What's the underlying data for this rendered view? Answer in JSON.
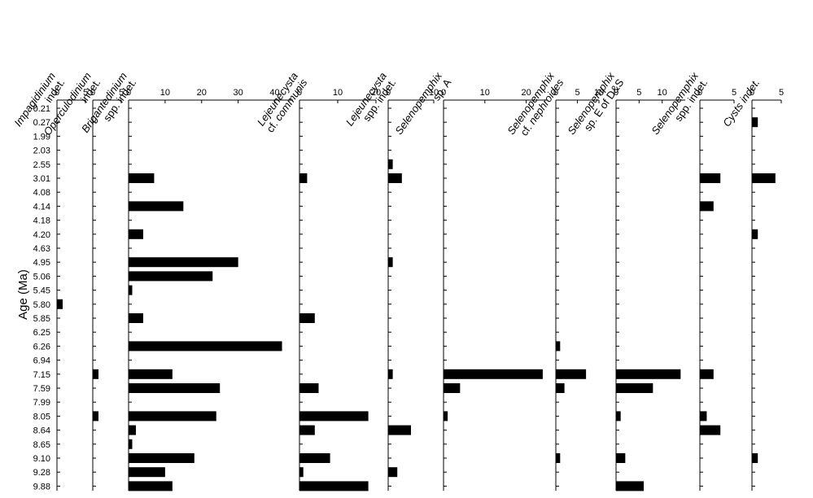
{
  "chart_data": {
    "type": "bar",
    "orientation": "horizontal",
    "ylabel": "Age (Ma)",
    "categories": [
      "0.21",
      "0.27",
      "1.99",
      "2.03",
      "2.55",
      "3.01",
      "4.08",
      "4.14",
      "4.18",
      "4.20",
      "4.63",
      "4.95",
      "5.06",
      "5.45",
      "5.80",
      "5.85",
      "6.25",
      "6.26",
      "6.94",
      "7.15",
      "7.59",
      "7.99",
      "8.05",
      "8.64",
      "8.65",
      "9.10",
      "9.28",
      "9.88"
    ],
    "panels": [
      {
        "id": "impagidinium",
        "title_lines": [
          [
            "Impagidinium",
            ""
          ],
          [
            "indet.",
            ""
          ]
        ],
        "xlim": [
          0,
          5
        ],
        "ticks": [
          "0",
          "5"
        ],
        "values": [
          0,
          0,
          0,
          0,
          0,
          0,
          0,
          0,
          0,
          0,
          0,
          0,
          0,
          0,
          1,
          0,
          0,
          0,
          0,
          0,
          0,
          0,
          0,
          0,
          0,
          0,
          0,
          0
        ]
      },
      {
        "id": "operculodinium",
        "title_lines": [
          [
            "Operculodinium",
            ""
          ],
          [
            "indet.",
            ""
          ]
        ],
        "xlim": [
          0,
          5
        ],
        "ticks": [
          "0",
          "5"
        ],
        "values": [
          0,
          0,
          0,
          0,
          0,
          0,
          0,
          0,
          0,
          0,
          0,
          0,
          0,
          0,
          0,
          0,
          0,
          0,
          0,
          1,
          0,
          0,
          1,
          0,
          0,
          0,
          0,
          0
        ]
      },
      {
        "id": "brigantedinium",
        "title_lines": [
          [
            "Brigantedinium",
            ""
          ],
          [
            "spp. indet.",
            ""
          ]
        ],
        "xlim": [
          0,
          45
        ],
        "ticks": [
          "0",
          "10",
          "20",
          "30",
          "40"
        ],
        "values": [
          0,
          0,
          0,
          0,
          0,
          7,
          0,
          15,
          0,
          4,
          0,
          30,
          23,
          1,
          0,
          4,
          0,
          42,
          0,
          12,
          25,
          0,
          24,
          2,
          1,
          18,
          10,
          12
        ]
      },
      {
        "id": "lejeunecysta_communis",
        "title_lines": [
          [
            "Lejeunecysta",
            ""
          ],
          [
            "cf. ",
            "communis"
          ]
        ],
        "xlim": [
          0,
          20
        ],
        "ticks": [
          "0",
          "10",
          "20"
        ],
        "values": [
          0,
          0,
          0,
          0,
          0,
          2,
          0,
          0,
          0,
          0,
          0,
          0,
          0,
          0,
          0,
          4,
          0,
          0,
          0,
          0,
          5,
          0,
          18,
          4,
          0,
          8,
          1,
          18
        ]
      },
      {
        "id": "lejeunecysta_spp",
        "title_lines": [
          [
            "Lejeunecysta",
            ""
          ],
          [
            "spp. indet.",
            ""
          ]
        ],
        "xlim": [
          0,
          10
        ],
        "ticks": [
          "0",
          "10"
        ],
        "values": [
          0,
          0,
          0,
          0,
          1,
          3,
          0,
          0,
          0,
          0,
          0,
          1,
          0,
          0,
          0,
          0,
          0,
          0,
          0,
          1,
          0,
          0,
          0,
          5,
          0,
          0,
          2,
          0
        ]
      },
      {
        "id": "selenopemphix_a",
        "title_lines": [
          [
            "Selenopemphix",
            ""
          ],
          [
            "sp. A",
            ""
          ]
        ],
        "xlim": [
          0,
          25
        ],
        "ticks": [
          "0",
          "10",
          "20"
        ],
        "values": [
          0,
          0,
          0,
          0,
          0,
          0,
          0,
          0,
          0,
          0,
          0,
          0,
          0,
          0,
          0,
          0,
          0,
          0,
          0,
          24,
          4,
          0,
          1,
          0,
          0,
          0,
          0,
          0
        ]
      },
      {
        "id": "selenopemphix_nephroides",
        "title_lines": [
          [
            "Selenopemphix",
            ""
          ],
          [
            "cf. ",
            "nephroides"
          ]
        ],
        "xlim": [
          0,
          10
        ],
        "ticks": [
          "0",
          "5",
          "10"
        ],
        "values": [
          0,
          0,
          0,
          0,
          0,
          0,
          0,
          0,
          0,
          0,
          0,
          0,
          0,
          0,
          0,
          0,
          0,
          1,
          0,
          7,
          2,
          0,
          0,
          0,
          0,
          1,
          0,
          0
        ]
      },
      {
        "id": "selenopemphix_e",
        "title_lines": [
          [
            "Selenopemphix",
            ""
          ],
          [
            "sp. E of D&S",
            ""
          ]
        ],
        "xlim": [
          0,
          15
        ],
        "ticks": [
          "0",
          "5",
          "10"
        ],
        "values": [
          0,
          0,
          0,
          0,
          0,
          0,
          0,
          0,
          0,
          0,
          0,
          0,
          0,
          0,
          0,
          0,
          0,
          0,
          0,
          14,
          8,
          0,
          1,
          0,
          0,
          2,
          0,
          6
        ]
      },
      {
        "id": "selenopemphix_spp",
        "title_lines": [
          [
            "Selenopemphix",
            ""
          ],
          [
            "spp. indet.",
            ""
          ]
        ],
        "xlim": [
          0,
          5
        ],
        "ticks": [
          "0",
          "5"
        ],
        "values": [
          0,
          0,
          0,
          0,
          0,
          3,
          0,
          2,
          0,
          0,
          0,
          0,
          0,
          0,
          0,
          0,
          0,
          0,
          0,
          2,
          0,
          0,
          1,
          3,
          0,
          0,
          0,
          0
        ]
      },
      {
        "id": "cysts",
        "title_lines": [
          [
            "",
            "Cysts indet."
          ]
        ],
        "xlim": [
          0,
          5
        ],
        "ticks": [
          "0",
          "5"
        ],
        "values": [
          0,
          1,
          0,
          0,
          0,
          4,
          0,
          0,
          0,
          1,
          0,
          0,
          0,
          0,
          0,
          0,
          0,
          0,
          0,
          0,
          0,
          0,
          0,
          0,
          0,
          1,
          0,
          0
        ]
      }
    ],
    "grid": false,
    "legend": "none"
  }
}
